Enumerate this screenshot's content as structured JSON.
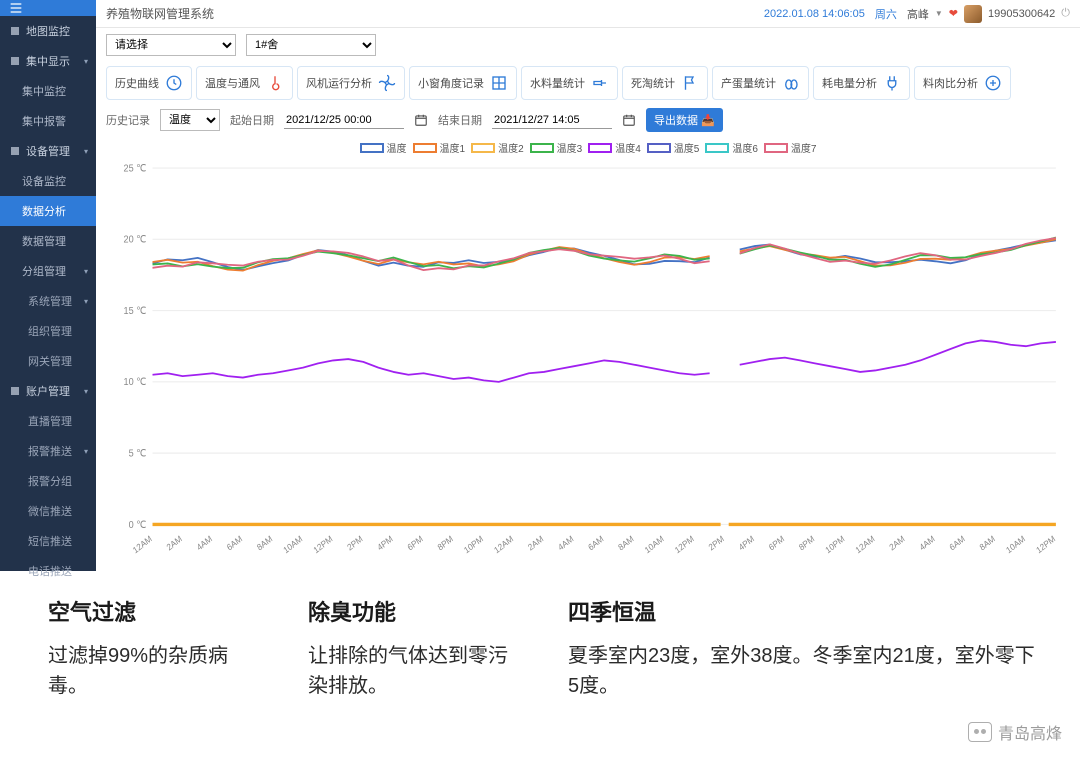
{
  "header": {
    "system_title": "养殖物联网管理系统",
    "datetime": "2022.01.08 14:06:05",
    "weekday": "周六",
    "username": "高峰",
    "phone": "19905300642"
  },
  "sidebar": {
    "items": [
      {
        "label": "地图监控",
        "has_sub": false
      },
      {
        "label": "集中显示",
        "has_sub": true
      },
      {
        "label": "集中监控",
        "sub": true
      },
      {
        "label": "集中报警",
        "sub": true
      },
      {
        "label": "设备管理",
        "has_sub": true
      },
      {
        "label": "设备监控",
        "sub": true
      },
      {
        "label": "数据分析",
        "sub": true,
        "active": true
      },
      {
        "label": "数据管理",
        "sub": true
      },
      {
        "label": "分组管理",
        "sub": true,
        "has_sub": true
      },
      {
        "label": "系统管理",
        "subsub": true,
        "has_sub": true
      },
      {
        "label": "组织管理",
        "subsub": true
      },
      {
        "label": "网关管理",
        "subsub": true
      },
      {
        "label": "账户管理",
        "has_sub": true
      },
      {
        "label": "直播管理",
        "subsub": true
      },
      {
        "label": "报警推送",
        "subsub": true,
        "has_sub": true
      },
      {
        "label": "报警分组",
        "subsub": true
      },
      {
        "label": "微信推送",
        "subsub": true
      },
      {
        "label": "短信推送",
        "subsub": true
      },
      {
        "label": "电话推送",
        "subsub": true
      }
    ]
  },
  "selectors": {
    "group_placeholder": "请选择",
    "house_selected": "1#舍"
  },
  "tabs": {
    "items": [
      {
        "label": "历史曲线",
        "icon": "clock",
        "color": "#2f7bd8"
      },
      {
        "label": "温度与通风",
        "icon": "thermometer",
        "color": "#e74c3c"
      },
      {
        "label": "风机运行分析",
        "icon": "fan",
        "color": "#2f7bd8"
      },
      {
        "label": "小窗角度记录",
        "icon": "window",
        "color": "#2f7bd8"
      },
      {
        "label": "水料量统计",
        "icon": "faucet",
        "color": "#2f7bd8"
      },
      {
        "label": "死淘统计",
        "icon": "flag",
        "color": "#2f7bd8"
      },
      {
        "label": "产蛋量统计",
        "icon": "eggs",
        "color": "#2f7bd8"
      },
      {
        "label": "耗电量分析",
        "icon": "plug",
        "color": "#2f7bd8"
      },
      {
        "label": "料肉比分析",
        "icon": "feed",
        "color": "#2f7bd8"
      }
    ]
  },
  "filter": {
    "history_label": "历史记录",
    "type_selected": "温度",
    "start_label": "起始日期",
    "start_value": "2021/12/25 00:00",
    "end_label": "结束日期",
    "end_value": "2021/12/27 14:05",
    "export_label": "导出数据"
  },
  "chart": {
    "series": [
      {
        "name": "温度",
        "color": "#4472c4"
      },
      {
        "name": "温度1",
        "color": "#ed7d31"
      },
      {
        "name": "温度2",
        "color": "#f5b84a"
      },
      {
        "name": "温度3",
        "color": "#3cb44b"
      },
      {
        "name": "温度4",
        "color": "#a020f0"
      },
      {
        "name": "温度5",
        "color": "#5560c4"
      },
      {
        "name": "温度6",
        "color": "#3ac7c7"
      },
      {
        "name": "温度7",
        "color": "#e06680"
      }
    ],
    "ylim": [
      0,
      25
    ],
    "ytick_step": 5,
    "y_unit": "℃",
    "xticks": [
      "12AM",
      "2AM",
      "4AM",
      "6AM",
      "8AM",
      "10AM",
      "12PM",
      "2PM",
      "4PM",
      "6PM",
      "8PM",
      "10PM",
      "12AM",
      "2AM",
      "4AM",
      "6AM",
      "8AM",
      "10AM",
      "12PM",
      "2PM",
      "4PM",
      "6PM",
      "8PM",
      "10PM",
      "12AM",
      "2AM",
      "4AM",
      "6AM",
      "8AM",
      "10AM",
      "12PM"
    ],
    "gap_index": 19,
    "upper_cluster": {
      "base": [
        18.2,
        18.4,
        18.3,
        18.5,
        18.3,
        18.1,
        18.0,
        18.3,
        18.5,
        18.6,
        18.9,
        19.2,
        19.1,
        18.9,
        18.6,
        18.3,
        18.5,
        18.2,
        18.0,
        18.2,
        18.1,
        18.3,
        18.2,
        18.4,
        18.6,
        19.0,
        19.2,
        19.4,
        19.3,
        19.0,
        18.8,
        18.6,
        18.4,
        18.5,
        18.7,
        18.6,
        18.4,
        18.6,
        18.9,
        19.1,
        19.4,
        19.6,
        19.3,
        19.0,
        18.8,
        18.6,
        18.7,
        18.5,
        18.3,
        18.4,
        18.6,
        18.8,
        18.7,
        18.5,
        18.6,
        18.9,
        19.1,
        19.3,
        19.6,
        19.8,
        20.0
      ],
      "colors": [
        "#4472c4",
        "#ed7d31",
        "#3cb44b",
        "#e06680"
      ]
    },
    "lower_series": {
      "color": "#a020f0",
      "values": [
        10.5,
        10.6,
        10.4,
        10.5,
        10.6,
        10.4,
        10.3,
        10.5,
        10.6,
        10.8,
        11.0,
        11.3,
        11.5,
        11.6,
        11.4,
        11.0,
        10.7,
        10.5,
        10.6,
        10.4,
        10.2,
        10.3,
        10.1,
        10.0,
        10.3,
        10.6,
        10.7,
        10.9,
        11.1,
        11.3,
        11.5,
        11.4,
        11.2,
        11.0,
        10.8,
        10.6,
        10.5,
        10.6,
        10.8,
        11.2,
        11.4,
        11.6,
        11.7,
        11.5,
        11.3,
        11.1,
        10.9,
        10.7,
        10.8,
        11.0,
        11.2,
        11.5,
        11.9,
        12.3,
        12.7,
        12.9,
        12.8,
        12.6,
        12.5,
        12.7,
        12.8
      ]
    },
    "grid_color": "#eeeeee",
    "background": "#ffffff"
  },
  "features": {
    "items": [
      {
        "title": "空气过滤",
        "desc": "过滤掉99%的杂质病毒。"
      },
      {
        "title": "除臭功能",
        "desc": "让排除的气体达到零污染排放。"
      },
      {
        "title": "四季恒温",
        "desc": "夏季室内23度，室外38度。冬季室内21度，室外零下5度。"
      }
    ]
  },
  "watermark": {
    "text": "青岛高烽"
  }
}
